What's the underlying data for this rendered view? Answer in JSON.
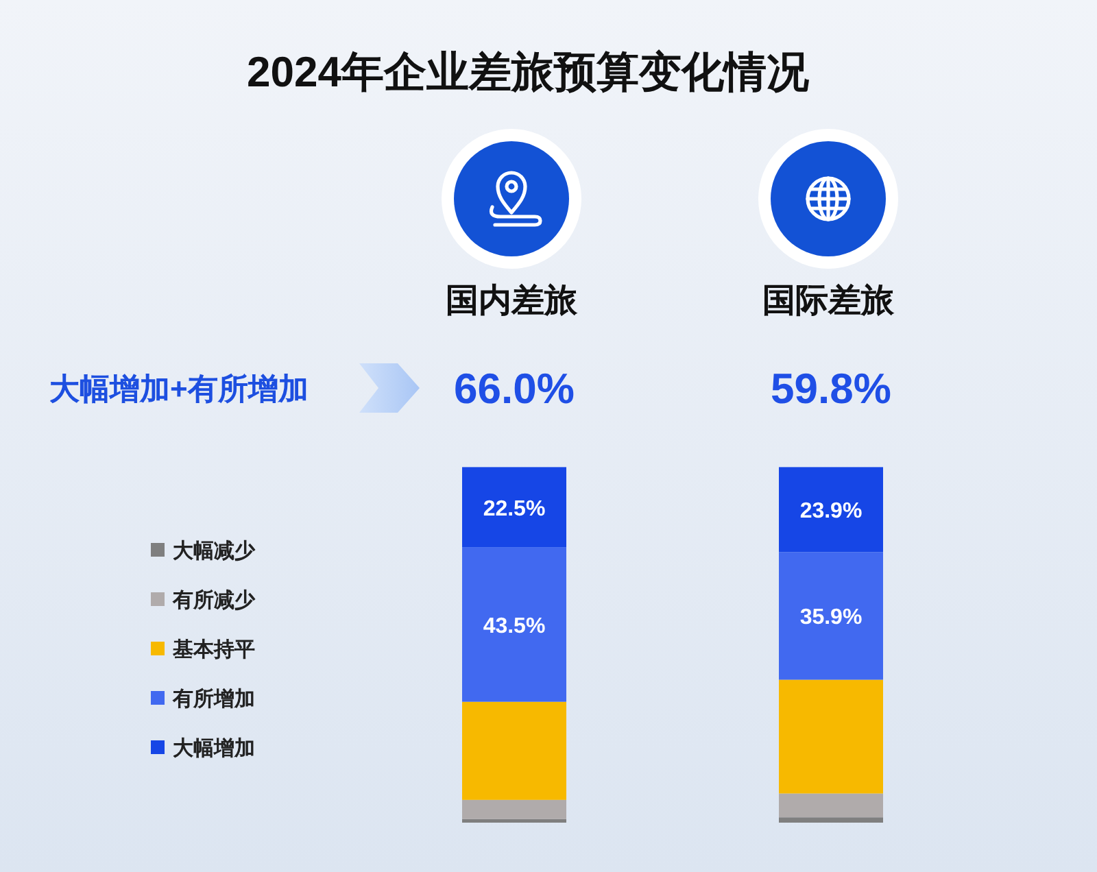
{
  "chart_data": {
    "type": "bar",
    "title": "2024年企业差旅预算变化情况",
    "categories": [
      "国内差旅",
      "国际差旅"
    ],
    "stacked": true,
    "ylim": [
      0,
      100
    ],
    "legend": "left",
    "series": [
      {
        "name": "大幅减少",
        "color": "#7f7f7f",
        "values": [
          1.0,
          1.5
        ]
      },
      {
        "name": "有所减少",
        "color": "#b0abab",
        "values": [
          5.4,
          6.7
        ]
      },
      {
        "name": "基本持平",
        "color": "#f7b900",
        "values": [
          27.6,
          32.0
        ]
      },
      {
        "name": "有所增加",
        "color": "#4169f0",
        "values": [
          43.5,
          35.9
        ],
        "value_labels": [
          "43.5%",
          "35.9%"
        ]
      },
      {
        "name": "大幅增加",
        "color": "#1646e6",
        "values": [
          22.5,
          23.9
        ],
        "value_labels": [
          "22.5%",
          "23.9%"
        ]
      }
    ],
    "annotations": [
      "大幅增加+有所增加",
      "66.0%",
      "59.8%"
    ]
  }
}
